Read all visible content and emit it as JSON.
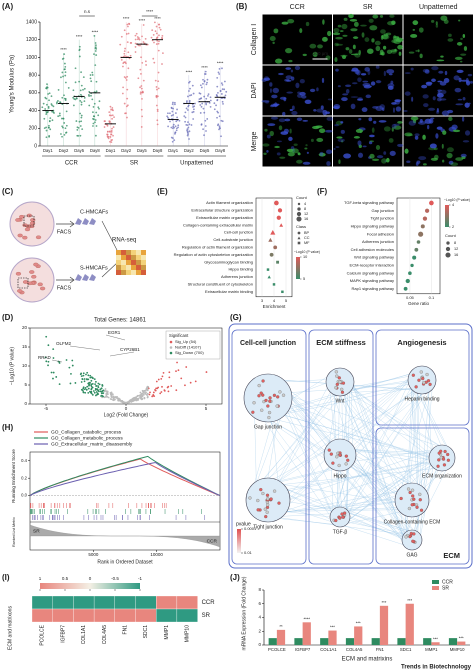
{
  "figure": {
    "footer": "Trends in Biotechnology"
  },
  "panel_a": {
    "label": "(A)",
    "ylabel": "Young's Modulus (Pa)",
    "ylim": [
      0,
      1400
    ],
    "yticks": [
      0,
      200,
      400,
      600,
      800,
      1000,
      1200,
      1400
    ],
    "day_labels": [
      "Day1",
      "Day2",
      "Day5",
      "Day8"
    ],
    "groups": [
      {
        "name": "CCR",
        "color": "#2e8b60",
        "medians": [
          400,
          480,
          560,
          600
        ],
        "maxima": [
          700,
          1050,
          1200,
          1250
        ],
        "sig": [
          null,
          "****",
          "****",
          "****"
        ],
        "bracket": "n.s"
      },
      {
        "name": "SR",
        "color": "#e0727a",
        "medians": [
          250,
          1000,
          1150,
          1200
        ],
        "maxima": [
          450,
          1400,
          1380,
          1400
        ],
        "sig": [
          null,
          "****",
          "****",
          "****"
        ],
        "bracket": "****"
      },
      {
        "name": "Unpatterned",
        "color": "#6b6fb8",
        "medians": [
          300,
          480,
          500,
          550
        ],
        "maxima": [
          500,
          800,
          850,
          900
        ],
        "sig": [
          null,
          "****",
          "****",
          "****"
        ]
      }
    ]
  },
  "panel_b": {
    "label": "(B)",
    "columns": [
      "CCR",
      "SR",
      "Unpatterned"
    ],
    "rows": [
      {
        "name": "Collagen I",
        "color": "#3cb043"
      },
      {
        "name": "DAPI",
        "color": "#3a4fd0"
      },
      {
        "name": "Merge",
        "color": "#111111"
      }
    ],
    "scalebar": "200 μm"
  },
  "panel_c": {
    "label": "(C)",
    "cells": [
      "C-HMCAFs",
      "S-HMCAFs"
    ],
    "method": "FACS",
    "assay": "RNA-seq"
  },
  "panel_d": {
    "label": "(D)",
    "title": "Total Genes: 14861",
    "ylabel": "−Log10 (P value)",
    "xlabel": "Log2 (Fold Change)",
    "xlim": [
      -6,
      6
    ],
    "xticks": [
      -5,
      0,
      5
    ],
    "ylim": [
      0,
      20
    ],
    "yticks": [
      0,
      5,
      10,
      15,
      20
    ],
    "genes": [
      "EGR1",
      "OLFM2",
      "CYP26B1",
      "RRAD"
    ],
    "legend_title": "Significant",
    "legend": [
      {
        "name": "Sig_Up (54)",
        "color": "#e05a5a"
      },
      {
        "name": "NoDiff (14107)",
        "color": "#bbbbbb"
      },
      {
        "name": "Sig_Down (700)",
        "color": "#2e8b60"
      }
    ]
  },
  "panel_e": {
    "label": "(E)",
    "terms": [
      "Actin filament organization",
      "Extracellular structure organization",
      "Extracellular matrix organization",
      "Collagen-containing extracellular matrix",
      "Cell-cell junction",
      "Cell-substrate junction",
      "Regulation of actin filament organization",
      "Regulation of actin cytoskeleton organization",
      "Glycosaminoglycan binding",
      "Hippo binding",
      "Adherens junction",
      "Structural constituent of cytoskeleton",
      "Extracellular matrix binding"
    ],
    "enrichment": [
      4.2,
      4.5,
      4.4,
      4.6,
      3.9,
      3.7,
      4.1,
      3.8,
      4.3,
      3.5,
      3.6,
      4.0,
      4.7
    ],
    "counts": [
      14,
      12,
      12,
      10,
      16,
      12,
      10,
      10,
      8,
      6,
      8,
      6,
      6
    ],
    "neg_log10_p": [
      12,
      14,
      14,
      12,
      10,
      8,
      8,
      7,
      6,
      4,
      5,
      4,
      5
    ],
    "classes": [
      "BP",
      "BP",
      "BP",
      "CC",
      "CC",
      "CC",
      "BP",
      "BP",
      "MF",
      "MF",
      "CC",
      "MF",
      "MF"
    ],
    "xlabel": "Enrichment",
    "xlim": [
      2.5,
      5.5
    ],
    "xticks": [
      3,
      4,
      5
    ],
    "count_title": "Count",
    "count_ticks": [
      4,
      8,
      12,
      16
    ],
    "class_title": "Class",
    "class_names": [
      "BP",
      "CC",
      "MF"
    ],
    "color_title": "−Log10 (P value)",
    "color_ticks": [
      5,
      10
    ],
    "color_range": [
      "#3a8d6a",
      "#e05a5a"
    ]
  },
  "panel_f": {
    "label": "(F)",
    "terms": [
      "TGF-beta signaling pathway",
      "Gap junction",
      "Tight junction",
      "Hippo signaling pathway",
      "Focal adhesion",
      "Adherens junction",
      "Cell adhesion molecules",
      "Wnt signaling pathway",
      "ECM-receptor interaction",
      "Calcium signaling pathway",
      "MAPK signaling pathway",
      "Rap1 signaling pathway"
    ],
    "gene_ratio": [
      0.1,
      0.09,
      0.085,
      0.08,
      0.075,
      0.07,
      0.065,
      0.06,
      0.055,
      0.05,
      0.045,
      0.04
    ],
    "counts": [
      14,
      12,
      12,
      11,
      16,
      9,
      10,
      11,
      8,
      9,
      12,
      10
    ],
    "neg_log10_p": [
      4,
      3.5,
      3.5,
      3,
      3,
      2.5,
      2.5,
      2,
      2,
      1.8,
      1.6,
      1.5
    ],
    "xlabel": "Gene ratio",
    "xlim": [
      0.02,
      0.12
    ],
    "xticks": [
      0.05,
      0.1
    ],
    "color_title": "−Log10 (P value)",
    "color_ticks": [
      2,
      4
    ],
    "color_range": [
      "#3a8d6a",
      "#e05a5a"
    ],
    "count_title": "Count",
    "count_ticks": [
      8,
      12,
      16
    ]
  },
  "panel_g": {
    "label": "(G)",
    "modules": [
      {
        "name": "Cell-cell junction",
        "nodes": [
          "Gap junction",
          "Tight junction"
        ]
      },
      {
        "name": "ECM stiffness",
        "nodes": [
          "Wnt",
          "Hippo",
          "TGF-β"
        ]
      },
      {
        "name": "Angiogenesis",
        "nodes": [
          "Heparin binding"
        ]
      },
      {
        "name": "ECM",
        "nodes": [
          "ECM organization",
          "Collagen-containing ECM",
          "GAG"
        ]
      }
    ],
    "legend_title": "pvalue",
    "legend_ticks": [
      0.0001,
      0.01
    ]
  },
  "panel_h": {
    "label": "(H)",
    "legend": [
      {
        "name": "GO_Collagen_catabolic_process",
        "color": "#e05a5a",
        "peak_es": 0.42
      },
      {
        "name": "GO_Collagen_metabolic_process",
        "color": "#2e8b60",
        "peak_es": 0.45
      },
      {
        "name": "GO_Extracellular_matrix_disassembly",
        "color": "#6b5fb0",
        "peak_es": 0.38
      }
    ],
    "ylabel": "Running Enrichment Score",
    "ylabel2": "Ranked List Metric",
    "xlabel": "Rank in Ordered Dataset",
    "xlim": [
      0,
      15000
    ],
    "xticks": [
      5000,
      10000
    ],
    "ylim": [
      -0.05,
      0.5
    ],
    "yticks": [
      {
        "value": 0,
        "label": "0.0"
      },
      0.2,
      0.4
    ],
    "ends": [
      "SR",
      "CCR"
    ]
  },
  "panel_i": {
    "label": "(I)",
    "ylabel": "ECM and matrixons",
    "genes": [
      "PCOLCE",
      "IGFBP7",
      "COL1A1",
      "COL4A5",
      "FN1",
      "SDC1",
      "MMP1",
      "MMP10"
    ],
    "rows": [
      {
        "name": "CCR",
        "values": [
          -1,
          -1,
          -1,
          -1,
          -1,
          -1,
          1,
          1
        ]
      },
      {
        "name": "SR",
        "values": [
          1,
          1,
          1,
          1,
          1,
          1,
          -1,
          -1
        ]
      }
    ],
    "scale_ticks": [
      1,
      0.5,
      0,
      -0.5,
      -1
    ],
    "scale_colors": [
      "#e8867e",
      "#f4efe4",
      "#2f9a82"
    ]
  },
  "panel_j": {
    "label": "(J)",
    "ylabel": "mRNA Expression (Fold Change)",
    "xlabel": "ECM and matrixins",
    "categories": [
      "PCOLCE",
      "IGFBP7",
      "COL1A1",
      "COL4A5",
      "FN1",
      "SDC1",
      "MMP1",
      "MMP10"
    ],
    "series": [
      {
        "name": "CCR",
        "color": "#2e8b60",
        "values": [
          1,
          1,
          1,
          1,
          1,
          1,
          1,
          1
        ]
      },
      {
        "name": "SR",
        "color": "#e8867e",
        "values": [
          2.2,
          3.3,
          2.1,
          2.7,
          5.7,
          6.0,
          0.4,
          0.5
        ],
        "sig": [
          "**",
          "****",
          "***",
          "***",
          "***",
          "***",
          "***",
          "***"
        ]
      }
    ],
    "ylim": [
      0,
      8
    ],
    "yticks": [
      0,
      2,
      4,
      6,
      8
    ]
  }
}
